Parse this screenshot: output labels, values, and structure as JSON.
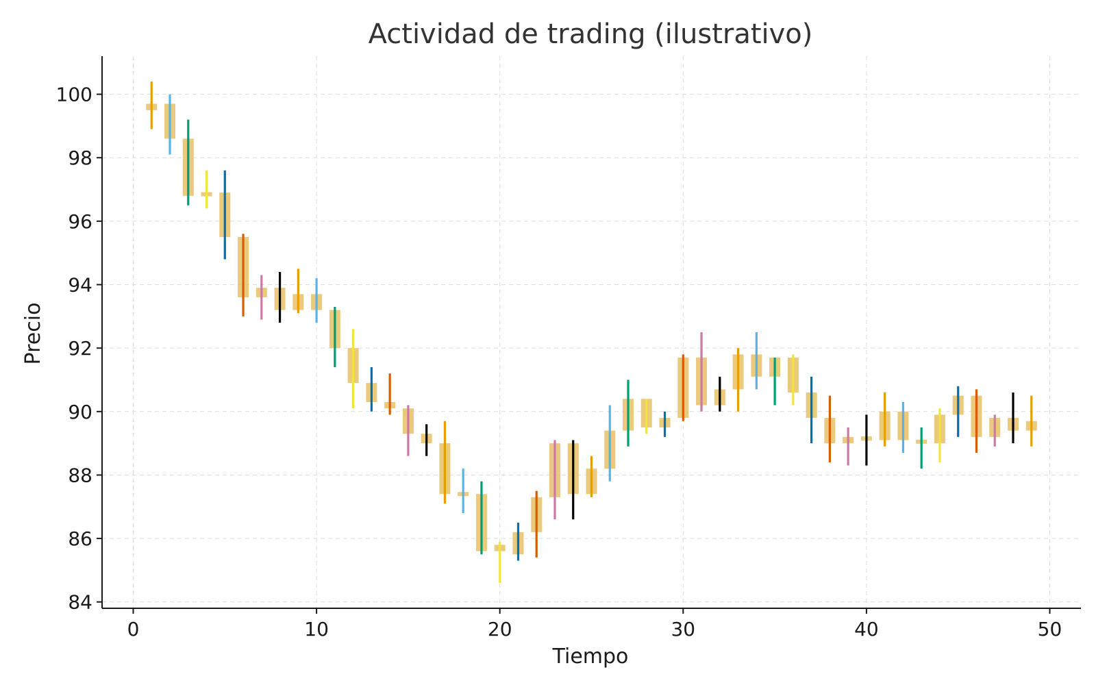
{
  "chart_data": {
    "type": "candlestick",
    "title": "Actividad de trading (ilustrativo)",
    "xlabel": "Tiempo",
    "ylabel": "Precio",
    "xlim": [
      -1.7,
      51.7
    ],
    "ylim": [
      83.8,
      101.2
    ],
    "xticks": [
      0,
      10,
      20,
      30,
      40,
      50
    ],
    "yticks": [
      84,
      86,
      88,
      90,
      92,
      94,
      96,
      98,
      100
    ],
    "grid": true,
    "body_color": "#e8c066",
    "wick_colors": [
      "#e69f00",
      "#56b4e9",
      "#009e73",
      "#f0e442",
      "#0072b2",
      "#d55e00",
      "#cc79a7",
      "#000000"
    ],
    "candles": [
      {
        "t": 1,
        "open": 99.5,
        "close": 99.7,
        "high": 100.4,
        "low": 98.9
      },
      {
        "t": 2,
        "open": 99.7,
        "close": 98.6,
        "high": 100.0,
        "low": 98.1
      },
      {
        "t": 3,
        "open": 98.6,
        "close": 96.8,
        "high": 99.2,
        "low": 96.5
      },
      {
        "t": 4,
        "open": 96.8,
        "close": 96.9,
        "high": 97.6,
        "low": 96.4
      },
      {
        "t": 5,
        "open": 96.9,
        "close": 95.5,
        "high": 97.6,
        "low": 94.8
      },
      {
        "t": 6,
        "open": 95.5,
        "close": 93.6,
        "high": 95.6,
        "low": 93.0
      },
      {
        "t": 7,
        "open": 93.6,
        "close": 93.9,
        "high": 94.3,
        "low": 92.9
      },
      {
        "t": 8,
        "open": 93.9,
        "close": 93.2,
        "high": 94.4,
        "low": 92.8
      },
      {
        "t": 9,
        "open": 93.2,
        "close": 93.7,
        "high": 94.5,
        "low": 93.1
      },
      {
        "t": 10,
        "open": 93.7,
        "close": 93.2,
        "high": 94.2,
        "low": 92.8
      },
      {
        "t": 11,
        "open": 93.2,
        "close": 92.0,
        "high": 93.3,
        "low": 91.4
      },
      {
        "t": 12,
        "open": 92.0,
        "close": 90.9,
        "high": 92.6,
        "low": 90.1
      },
      {
        "t": 13,
        "open": 90.9,
        "close": 90.3,
        "high": 91.4,
        "low": 90.0
      },
      {
        "t": 14,
        "open": 90.3,
        "close": 90.1,
        "high": 91.2,
        "low": 89.9
      },
      {
        "t": 15,
        "open": 90.1,
        "close": 89.3,
        "high": 90.2,
        "low": 88.6
      },
      {
        "t": 16,
        "open": 89.3,
        "close": 89.0,
        "high": 89.6,
        "low": 88.6
      },
      {
        "t": 17,
        "open": 89.0,
        "close": 87.4,
        "high": 89.7,
        "low": 87.1
      },
      {
        "t": 18,
        "open": 87.4,
        "close": 87.4,
        "high": 88.2,
        "low": 86.8
      },
      {
        "t": 19,
        "open": 87.4,
        "close": 85.6,
        "high": 87.8,
        "low": 85.5
      },
      {
        "t": 20,
        "open": 85.6,
        "close": 85.8,
        "high": 85.9,
        "low": 84.6
      },
      {
        "t": 21,
        "open": 85.5,
        "close": 86.2,
        "high": 86.5,
        "low": 85.3
      },
      {
        "t": 22,
        "open": 86.2,
        "close": 87.3,
        "high": 87.5,
        "low": 85.4
      },
      {
        "t": 23,
        "open": 87.3,
        "close": 89.0,
        "high": 89.1,
        "low": 86.6
      },
      {
        "t": 24,
        "open": 89.0,
        "close": 87.4,
        "high": 89.1,
        "low": 86.6
      },
      {
        "t": 25,
        "open": 87.4,
        "close": 88.2,
        "high": 88.6,
        "low": 87.3
      },
      {
        "t": 26,
        "open": 88.2,
        "close": 89.4,
        "high": 90.2,
        "low": 87.8
      },
      {
        "t": 27,
        "open": 89.4,
        "close": 90.4,
        "high": 91.0,
        "low": 88.9
      },
      {
        "t": 28,
        "open": 90.4,
        "close": 89.5,
        "high": 90.4,
        "low": 89.3
      },
      {
        "t": 29,
        "open": 89.5,
        "close": 89.8,
        "high": 90.0,
        "low": 89.2
      },
      {
        "t": 30,
        "open": 89.8,
        "close": 91.7,
        "high": 91.8,
        "low": 89.7
      },
      {
        "t": 31,
        "open": 91.7,
        "close": 90.2,
        "high": 92.5,
        "low": 90.0
      },
      {
        "t": 32,
        "open": 90.2,
        "close": 90.7,
        "high": 91.1,
        "low": 90.0
      },
      {
        "t": 33,
        "open": 90.7,
        "close": 91.8,
        "high": 92.0,
        "low": 90.0
      },
      {
        "t": 34,
        "open": 91.8,
        "close": 91.1,
        "high": 92.5,
        "low": 90.7
      },
      {
        "t": 35,
        "open": 91.1,
        "close": 91.7,
        "high": 91.7,
        "low": 90.2
      },
      {
        "t": 36,
        "open": 91.7,
        "close": 90.6,
        "high": 91.8,
        "low": 90.2
      },
      {
        "t": 37,
        "open": 90.6,
        "close": 89.8,
        "high": 91.1,
        "low": 89.0
      },
      {
        "t": 38,
        "open": 89.8,
        "close": 89.0,
        "high": 90.5,
        "low": 88.4
      },
      {
        "t": 39,
        "open": 89.0,
        "close": 89.2,
        "high": 89.5,
        "low": 88.3
      },
      {
        "t": 40,
        "open": 89.2,
        "close": 89.1,
        "high": 89.9,
        "low": 88.3
      },
      {
        "t": 41,
        "open": 89.1,
        "close": 90.0,
        "high": 90.6,
        "low": 88.9
      },
      {
        "t": 42,
        "open": 90.0,
        "close": 89.1,
        "high": 90.3,
        "low": 88.7
      },
      {
        "t": 43,
        "open": 89.1,
        "close": 89.0,
        "high": 89.5,
        "low": 88.2
      },
      {
        "t": 44,
        "open": 89.0,
        "close": 89.9,
        "high": 90.1,
        "low": 88.4
      },
      {
        "t": 45,
        "open": 89.9,
        "close": 90.5,
        "high": 90.8,
        "low": 89.2
      },
      {
        "t": 46,
        "open": 90.5,
        "close": 89.2,
        "high": 90.7,
        "low": 88.7
      },
      {
        "t": 47,
        "open": 89.2,
        "close": 89.8,
        "high": 89.9,
        "low": 88.9
      },
      {
        "t": 48,
        "open": 89.8,
        "close": 89.4,
        "high": 90.6,
        "low": 89.0
      },
      {
        "t": 49,
        "open": 89.4,
        "close": 89.7,
        "high": 90.5,
        "low": 88.9
      }
    ]
  }
}
